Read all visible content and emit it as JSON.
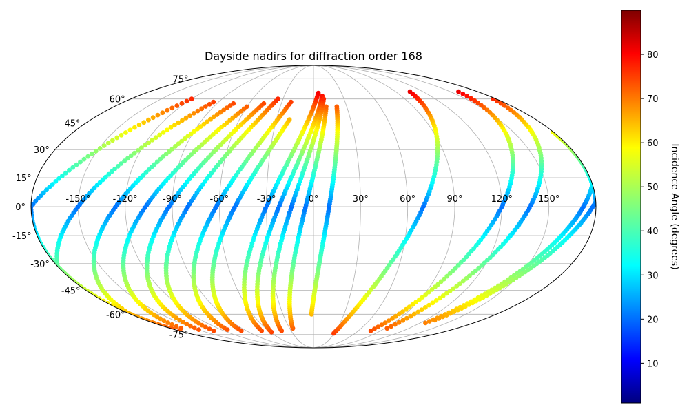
{
  "chart_data": {
    "type": "scatter",
    "projection": "mollweide",
    "title": "Dayside nadirs for diffraction order 168",
    "xlabel": "",
    "ylabel": "",
    "x_tick_labels": [
      "-150°",
      "-120°",
      "-90°",
      "-60°",
      "-30°",
      "0°",
      "30°",
      "60°",
      "90°",
      "120°",
      "150°"
    ],
    "x_tick_values": [
      -150,
      -120,
      -90,
      -60,
      -30,
      0,
      30,
      60,
      90,
      120,
      150
    ],
    "y_tick_labels": [
      "-75°",
      "-60°",
      "-45°",
      "-30°",
      "-15°",
      "0°",
      "15°",
      "30°",
      "45°",
      "60°",
      "75°"
    ],
    "y_tick_values": [
      -75,
      -60,
      -45,
      -30,
      -15,
      0,
      15,
      30,
      45,
      60,
      75
    ],
    "xlim": [
      -180,
      180
    ],
    "ylim": [
      -90,
      90
    ],
    "grid": true,
    "colormap": "jet",
    "colorbar": {
      "label": "Incidence Angle (degrees)",
      "range": [
        1,
        90
      ],
      "tick_labels": [
        "10",
        "20",
        "30",
        "40",
        "50",
        "60",
        "70",
        "80"
      ],
      "tick_values": [
        10,
        20,
        30,
        40,
        50,
        60,
        70,
        80
      ]
    },
    "series": [
      {
        "lon_equator": -180,
        "lat_min": -72,
        "lat_max": 60,
        "slope": 1.0
      },
      {
        "lon_equator": -150,
        "lat_min": -70,
        "lat_max": 58,
        "slope": 0.95
      },
      {
        "lon_equator": -126,
        "lat_min": -69,
        "lat_max": 57,
        "slope": 0.9
      },
      {
        "lon_equator": -107,
        "lat_min": -70,
        "lat_max": 55,
        "slope": 0.85
      },
      {
        "lon_equator": -92,
        "lat_min": -71,
        "lat_max": 57,
        "slope": 0.8
      },
      {
        "lon_equator": -80,
        "lat_min": -72,
        "lat_max": 60,
        "slope": 0.75
      },
      {
        "lon_equator": -62,
        "lat_min": -71,
        "lat_max": 58,
        "slope": 0.7
      },
      {
        "lon_equator": -50,
        "lat_min": -72,
        "lat_max": 47,
        "slope": 0.65
      },
      {
        "lon_equator": -30,
        "lat_min": -72,
        "lat_max": 64,
        "slope": 0.55
      },
      {
        "lon_equator": -22,
        "lat_min": -73,
        "lat_max": 62,
        "slope": 0.5
      },
      {
        "lon_equator": -14,
        "lat_min": -72,
        "lat_max": 60,
        "slope": 0.4
      },
      {
        "lon_equator": -5,
        "lat_min": -70,
        "lat_max": 55,
        "slope": 0.3
      },
      {
        "lon_equator": 10,
        "lat_min": -60,
        "lat_max": 55,
        "slope": 0.2
      },
      {
        "lon_equator": 70,
        "lat_min": -74,
        "lat_max": 65,
        "slope": 0.55
      },
      {
        "lon_equator": 120,
        "lat_min": -72,
        "lat_max": 65,
        "slope": 0.6
      },
      {
        "lon_equator": 138,
        "lat_min": -70,
        "lat_max": 60,
        "slope": 0.65
      },
      {
        "lon_equator": 172,
        "lat_min": -66,
        "lat_max": 40,
        "slope": 0.7
      },
      {
        "lon_equator": 178,
        "lat_min": -64,
        "lat_max": 38,
        "slope": 0.75
      }
    ]
  }
}
